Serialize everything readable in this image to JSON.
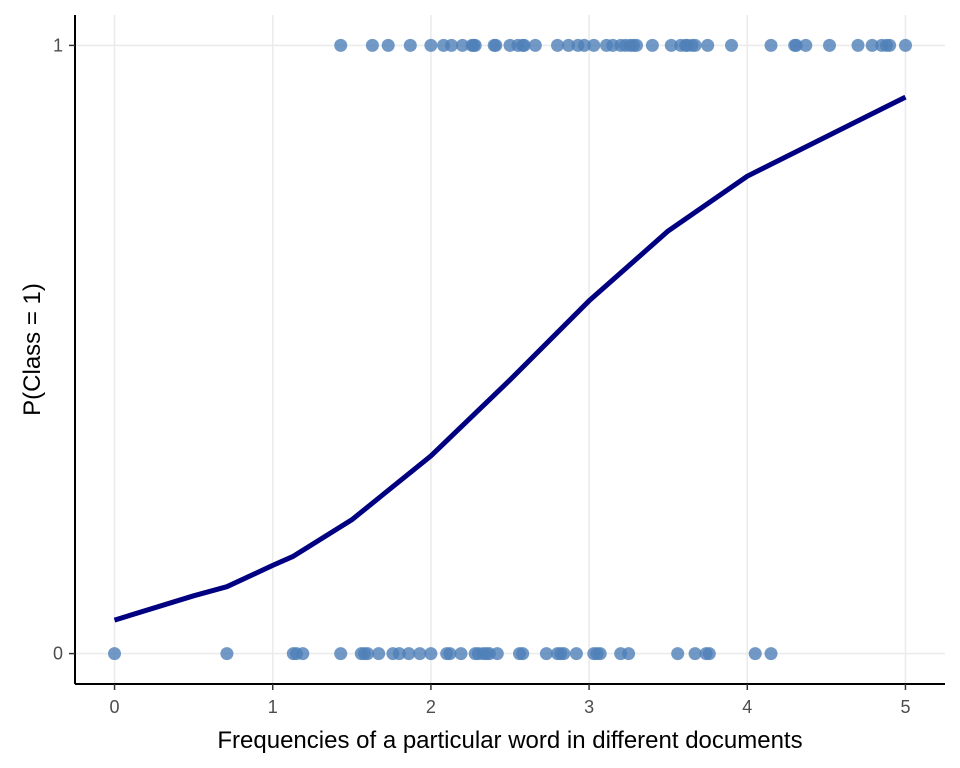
{
  "chart_data": {
    "type": "scatter",
    "title": "",
    "xlabel": "Frequencies of a particular word in different documents",
    "ylabel": "P(Class = 1)",
    "xlim": [
      -0.25,
      5.25
    ],
    "ylim": [
      -0.05,
      1.05
    ],
    "x_ticks": [
      0,
      1,
      2,
      3,
      4,
      5
    ],
    "y_ticks": [
      0,
      1
    ],
    "x_tick_labels": [
      "0",
      "1",
      "2",
      "3",
      "4",
      "5"
    ],
    "y_tick_labels": [
      "0",
      "1"
    ],
    "grid": "major",
    "legend": "none",
    "colors": {
      "points": "#4f7fb8",
      "curve": "#000080",
      "grid": "#ebebeb",
      "axis": "#000000"
    },
    "series": [
      {
        "kind": "points",
        "class": 1,
        "x": [
          1.43,
          1.63,
          1.73,
          1.87,
          2.0,
          2.08,
          2.13,
          2.2,
          2.26,
          2.27,
          2.28,
          2.4,
          2.41,
          2.5,
          2.55,
          2.58,
          2.59,
          2.66,
          2.8,
          2.87,
          2.93,
          2.97,
          3.03,
          3.11,
          3.15,
          3.2,
          3.23,
          3.26,
          3.28,
          3.3,
          3.4,
          3.52,
          3.58,
          3.61,
          3.62,
          3.65,
          3.67,
          3.75,
          3.9,
          4.15,
          4.3,
          4.31,
          4.37,
          4.52,
          4.7,
          4.79,
          4.85,
          4.88,
          4.9,
          5.0
        ],
        "y": [
          1,
          1,
          1,
          1,
          1,
          1,
          1,
          1,
          1,
          1,
          1,
          1,
          1,
          1,
          1,
          1,
          1,
          1,
          1,
          1,
          1,
          1,
          1,
          1,
          1,
          1,
          1,
          1,
          1,
          1,
          1,
          1,
          1,
          1,
          1,
          1,
          1,
          1,
          1,
          1,
          1,
          1,
          1,
          1,
          1,
          1,
          1,
          1,
          1,
          1
        ]
      },
      {
        "kind": "points",
        "class": 0,
        "x": [
          0.0,
          0.71,
          1.13,
          1.15,
          1.19,
          1.43,
          1.56,
          1.58,
          1.6,
          1.67,
          1.76,
          1.8,
          1.86,
          1.93,
          2.0,
          2.1,
          2.12,
          2.19,
          2.28,
          2.3,
          2.33,
          2.35,
          2.37,
          2.42,
          2.56,
          2.58,
          2.73,
          2.8,
          2.82,
          2.84,
          2.92,
          3.03,
          3.05,
          3.07,
          3.2,
          3.25,
          3.56,
          3.67,
          3.74,
          3.76,
          4.05,
          4.15
        ],
        "y": [
          0,
          0,
          0,
          0,
          0,
          0,
          0,
          0,
          0,
          0,
          0,
          0,
          0,
          0,
          0,
          0,
          0,
          0,
          0,
          0,
          0,
          0,
          0,
          0,
          0,
          0,
          0,
          0,
          0,
          0,
          0,
          0,
          0,
          0,
          0,
          0,
          0,
          0,
          0,
          0,
          0,
          0
        ]
      },
      {
        "kind": "line",
        "x": [
          0,
          0.5,
          0.71,
          1.0,
          1.13,
          1.5,
          2.0,
          2.5,
          3.0,
          3.5,
          4.0,
          4.5,
          5.0
        ],
        "y": [
          0.055,
          0.095,
          0.11,
          0.145,
          0.16,
          0.22,
          0.325,
          0.45,
          0.58,
          0.695,
          0.785,
          0.85,
          0.915
        ]
      }
    ]
  }
}
